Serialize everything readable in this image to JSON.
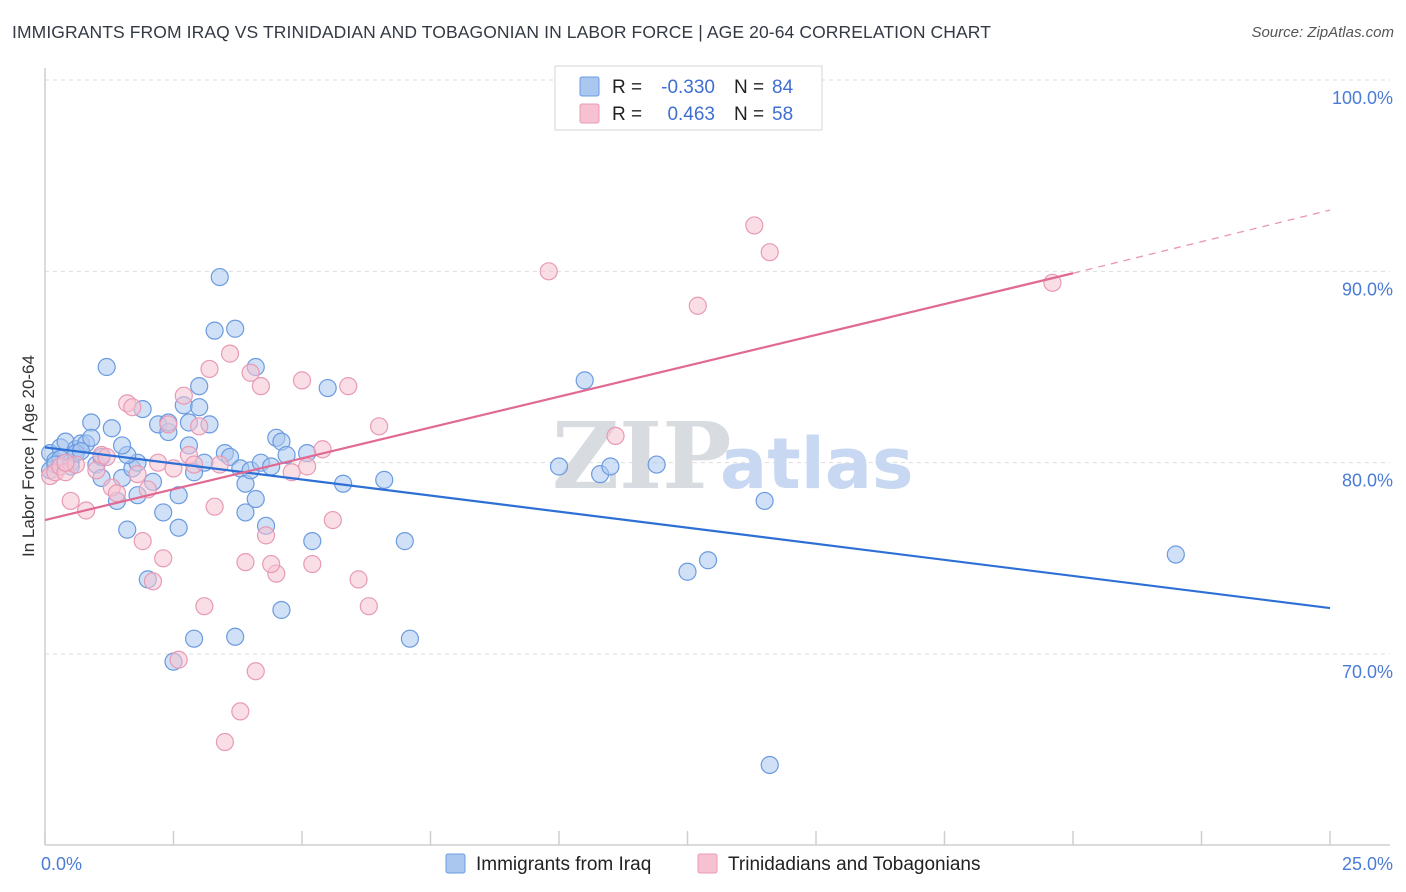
{
  "header": {
    "title": "IMMIGRANTS FROM IRAQ VS TRINIDADIAN AND TOBAGONIAN IN LABOR FORCE | AGE 20-64 CORRELATION CHART",
    "source": "Source: ZipAtlas.com"
  },
  "watermark": {
    "zip": "ZIP",
    "atlas": "atlas"
  },
  "colors": {
    "blue_fill": "#a9c7ef",
    "blue_stroke": "#6b9be0",
    "blue_line": "#2e6fd6",
    "pink_fill": "#f6c2d2",
    "pink_stroke": "#e89ab4",
    "pink_line": "#e06a93",
    "grid": "#dddddd",
    "tick_text": "#4a7cd6"
  },
  "legend": {
    "rows": [
      {
        "r_label": "R =",
        "r_value": "-0.330",
        "n_label": "N =",
        "n_value": "84"
      },
      {
        "r_label": "R =",
        "r_value": "0.463",
        "n_label": "N =",
        "n_value": "58"
      }
    ]
  },
  "chart_data": {
    "type": "scatter",
    "title": "IMMIGRANTS FROM IRAQ VS TRINIDADIAN AND TOBAGONIAN IN LABOR FORCE | AGE 20-64 CORRELATION CHART",
    "xlabel": "",
    "ylabel": "In Labor Force | Age 20-64",
    "xlim": [
      0,
      25
    ],
    "ylim": [
      60,
      102
    ],
    "x_ticks": [
      "0.0%",
      "25.0%"
    ],
    "y_ticks": [
      {
        "value": 100,
        "label": "100.0%"
      },
      {
        "value": 90,
        "label": "90.0%"
      },
      {
        "value": 80,
        "label": "80.0%"
      },
      {
        "value": 70,
        "label": "70.0%"
      }
    ],
    "grid": true,
    "legend_position": "top-center",
    "series": [
      {
        "name": "Immigrants from Iraq",
        "color": "#a9c7ef",
        "trend": {
          "x": [
            0.0,
            25.0
          ],
          "y": [
            80.8,
            72.4
          ],
          "style": "solid"
        },
        "points": [
          [
            0.1,
            80.5
          ],
          [
            0.1,
            79.6
          ],
          [
            0.2,
            80.1
          ],
          [
            0.3,
            80.8
          ],
          [
            0.3,
            80.2
          ],
          [
            0.4,
            81.1
          ],
          [
            0.5,
            80.0
          ],
          [
            0.5,
            79.8
          ],
          [
            0.6,
            80.7
          ],
          [
            0.7,
            81.0
          ],
          [
            0.8,
            81.0
          ],
          [
            0.9,
            82.1
          ],
          [
            1.0,
            79.9
          ],
          [
            1.1,
            80.3
          ],
          [
            1.2,
            85.0
          ],
          [
            1.3,
            81.8
          ],
          [
            1.4,
            78.0
          ],
          [
            1.5,
            79.2
          ],
          [
            1.6,
            76.5
          ],
          [
            1.7,
            79.7
          ],
          [
            1.8,
            80.0
          ],
          [
            1.9,
            82.8
          ],
          [
            2.0,
            73.9
          ],
          [
            2.1,
            79.0
          ],
          [
            2.2,
            82.0
          ],
          [
            2.3,
            77.4
          ],
          [
            2.4,
            81.6
          ],
          [
            2.5,
            69.6
          ],
          [
            2.6,
            76.6
          ],
          [
            2.7,
            83.0
          ],
          [
            2.8,
            82.1
          ],
          [
            2.9,
            79.5
          ],
          [
            3.0,
            82.9
          ],
          [
            3.1,
            80.0
          ],
          [
            3.2,
            82.0
          ],
          [
            3.3,
            86.9
          ],
          [
            3.4,
            89.7
          ],
          [
            3.5,
            80.5
          ],
          [
            3.6,
            80.3
          ],
          [
            3.7,
            87.0
          ],
          [
            3.8,
            79.7
          ],
          [
            3.9,
            78.9
          ],
          [
            4.0,
            79.6
          ],
          [
            4.1,
            85.0
          ],
          [
            4.2,
            80.0
          ],
          [
            4.3,
            76.7
          ],
          [
            4.4,
            79.8
          ],
          [
            4.5,
            81.3
          ],
          [
            4.6,
            81.1
          ],
          [
            4.7,
            80.4
          ],
          [
            5.1,
            80.5
          ],
          [
            5.2,
            75.9
          ],
          [
            5.5,
            83.9
          ],
          [
            5.8,
            78.9
          ],
          [
            6.6,
            79.1
          ],
          [
            7.0,
            75.9
          ],
          [
            7.1,
            70.8
          ],
          [
            10.0,
            79.8
          ],
          [
            10.5,
            84.3
          ],
          [
            10.8,
            79.4
          ],
          [
            11.0,
            79.8
          ],
          [
            11.9,
            79.9
          ],
          [
            12.5,
            74.3
          ],
          [
            12.9,
            74.9
          ],
          [
            14.0,
            78.0
          ],
          [
            14.1,
            64.2
          ],
          [
            22.0,
            75.2
          ],
          [
            0.6,
            80.5
          ],
          [
            1.6,
            80.4
          ],
          [
            2.6,
            78.3
          ],
          [
            3.7,
            70.9
          ],
          [
            4.6,
            72.3
          ],
          [
            3.0,
            84.0
          ],
          [
            1.8,
            78.3
          ],
          [
            0.9,
            81.3
          ],
          [
            2.4,
            82.1
          ],
          [
            3.9,
            77.4
          ],
          [
            0.2,
            79.9
          ],
          [
            1.1,
            79.2
          ],
          [
            2.8,
            80.9
          ],
          [
            4.1,
            78.1
          ],
          [
            0.7,
            80.6
          ],
          [
            1.5,
            80.9
          ],
          [
            2.9,
            70.8
          ]
        ]
      },
      {
        "name": "Trinidadians and Tobagonians",
        "color": "#f6c2d2",
        "trend": {
          "x": [
            0.0,
            20.0
          ],
          "y": [
            77.0,
            89.9
          ],
          "style": "solid",
          "extended_x": [
            20.0,
            25.0
          ],
          "extended_y": [
            89.9,
            93.2
          ],
          "extended_style": "dashed"
        },
        "points": [
          [
            0.1,
            79.3
          ],
          [
            0.2,
            79.5
          ],
          [
            0.3,
            79.8
          ],
          [
            0.4,
            79.5
          ],
          [
            0.5,
            78.0
          ],
          [
            0.6,
            79.9
          ],
          [
            0.8,
            77.5
          ],
          [
            1.0,
            79.6
          ],
          [
            1.1,
            80.4
          ],
          [
            1.3,
            78.7
          ],
          [
            1.4,
            78.4
          ],
          [
            1.6,
            83.1
          ],
          [
            1.7,
            82.9
          ],
          [
            1.8,
            79.4
          ],
          [
            1.9,
            75.9
          ],
          [
            2.0,
            78.6
          ],
          [
            2.1,
            73.8
          ],
          [
            2.2,
            80.0
          ],
          [
            2.3,
            75.0
          ],
          [
            2.4,
            82.0
          ],
          [
            2.5,
            79.7
          ],
          [
            2.6,
            69.7
          ],
          [
            2.7,
            83.5
          ],
          [
            2.8,
            80.4
          ],
          [
            3.0,
            81.9
          ],
          [
            3.1,
            72.5
          ],
          [
            3.2,
            84.9
          ],
          [
            3.3,
            77.7
          ],
          [
            3.4,
            79.9
          ],
          [
            3.5,
            65.4
          ],
          [
            3.6,
            85.7
          ],
          [
            3.8,
            67.0
          ],
          [
            3.9,
            74.8
          ],
          [
            4.0,
            84.7
          ],
          [
            4.1,
            69.1
          ],
          [
            4.2,
            84.0
          ],
          [
            4.3,
            76.2
          ],
          [
            4.5,
            74.2
          ],
          [
            4.8,
            79.5
          ],
          [
            5.0,
            84.3
          ],
          [
            5.2,
            74.7
          ],
          [
            5.4,
            80.7
          ],
          [
            5.6,
            77.0
          ],
          [
            5.9,
            84.0
          ],
          [
            6.1,
            73.9
          ],
          [
            6.3,
            72.5
          ],
          [
            6.5,
            81.9
          ],
          [
            9.8,
            90.0
          ],
          [
            11.1,
            81.4
          ],
          [
            12.7,
            88.2
          ],
          [
            13.8,
            92.4
          ],
          [
            14.1,
            91.0
          ],
          [
            19.6,
            89.4
          ],
          [
            1.2,
            80.3
          ],
          [
            0.4,
            80.0
          ],
          [
            2.9,
            79.9
          ],
          [
            4.4,
            74.7
          ],
          [
            5.1,
            79.8
          ]
        ]
      }
    ]
  }
}
